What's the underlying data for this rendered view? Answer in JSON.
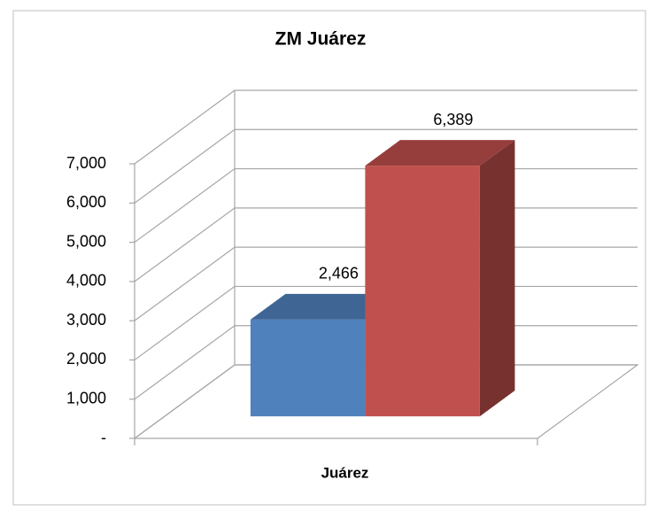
{
  "chart_data": {
    "type": "bar3d",
    "title": "ZM Juárez",
    "categories": [
      "Juárez"
    ],
    "series": [
      {
        "color": "#4f81bd",
        "values": [
          2466
        ],
        "value_labels": [
          "2,466"
        ]
      },
      {
        "color": "#c0504d",
        "values": [
          6389
        ],
        "value_labels": [
          "6,389"
        ]
      }
    ],
    "ylim": [
      0,
      7000
    ],
    "yticks": [
      {
        "value": 0,
        "label": "-"
      },
      {
        "value": 1000,
        "label": "1,000"
      },
      {
        "value": 2000,
        "label": "2,000"
      },
      {
        "value": 3000,
        "label": "3,000"
      },
      {
        "value": 4000,
        "label": "4,000"
      },
      {
        "value": 5000,
        "label": "5,000"
      },
      {
        "value": 6000,
        "label": "6,000"
      },
      {
        "value": 7000,
        "label": "7,000"
      }
    ],
    "grid": true
  }
}
